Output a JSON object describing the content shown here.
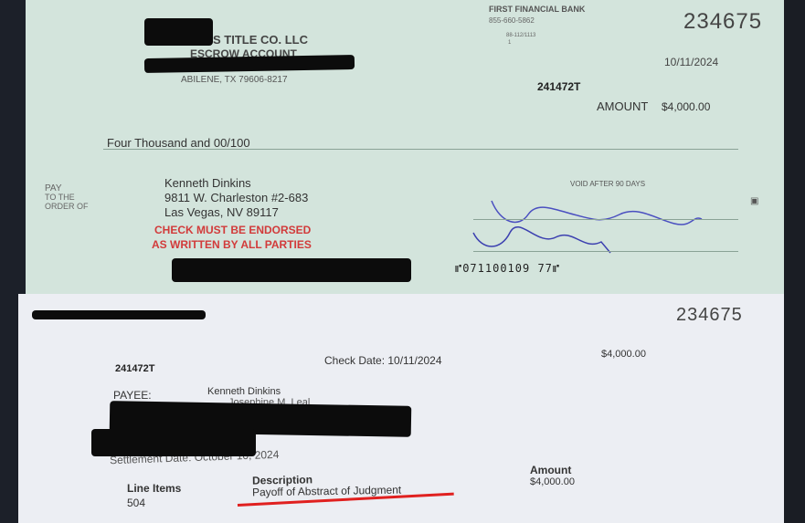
{
  "check": {
    "company_name": "S TITLE CO. LLC",
    "account": "ESCROW ACCOUNT",
    "company_address": "ABILENE, TX 79606-8217",
    "bank_name": "FIRST FINANCIAL BANK",
    "bank_phone": "855-660-5862",
    "routing_fraction": "88-112/1113",
    "routing_fraction_sub": "1",
    "check_number": "234675",
    "date": "10/11/2024",
    "reference": "241472T",
    "amount_label": "AMOUNT",
    "amount": "$4,000.00",
    "amount_words": "Four Thousand and 00/100",
    "pay_label": "PAY",
    "to_order_label": "TO THE\nORDER OF",
    "payee_name": "Kenneth Dinkins",
    "payee_address1": "9811 W. Charleston #2-683",
    "payee_address2": "Las Vegas, NV  89117",
    "endorse_notice_1": "CHECK MUST BE ENDORSED",
    "endorse_notice_2": "AS WRITTEN BY ALL PARTIES",
    "void_notice": "VOID AFTER 90 DAYS",
    "micr": "⑈071100109 77⑈",
    "endorse_color": "#d23a3a"
  },
  "stub": {
    "check_number": "234675",
    "reference": "241472T",
    "check_date": "Check Date: 10/11/2024",
    "amount_top": "$4,000.00",
    "payee_label": "PAYEE:",
    "payee_name": "Kenneth Dinkins",
    "payee_partial": "Josephine M. Leal",
    "settlement_date": "Settlement Date: October 10, 2024",
    "line_items_label": "Line Items",
    "line_items_value": "504",
    "description_label": "Description",
    "description_value": "Payoff of Abstract of Judgment",
    "amount_label": "Amount",
    "amount_value": "$4,000.00",
    "underline_color": "#e0201f"
  }
}
